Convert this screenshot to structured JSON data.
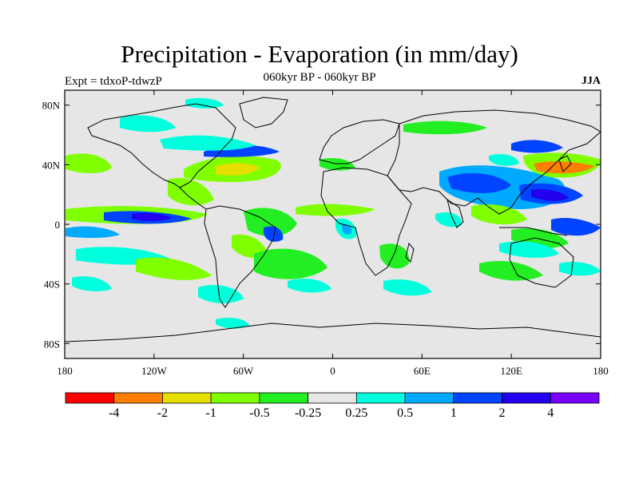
{
  "header": {
    "title": "Precipitation - Evaporation (in mm/day)",
    "subtitle": "060kyr BP - 060kyr BP",
    "left_label": "Expt = tdxoP-tdwzP",
    "right_label": "JJA"
  },
  "map": {
    "background_color": "#e6e6e6",
    "lat_ticks": [
      {
        "lat": 80,
        "label": "80N"
      },
      {
        "lat": 40,
        "label": "40N"
      },
      {
        "lat": 0,
        "label": "0"
      },
      {
        "lat": -40,
        "label": "40S"
      },
      {
        "lat": -80,
        "label": "80S"
      }
    ],
    "lon_ticks": [
      {
        "lon": -180,
        "label": "180"
      },
      {
        "lon": -120,
        "label": "120W"
      },
      {
        "lon": -60,
        "label": "60W"
      },
      {
        "lon": 0,
        "label": "0"
      },
      {
        "lon": 60,
        "label": "60E"
      },
      {
        "lon": 120,
        "label": "120E"
      },
      {
        "lon": 180,
        "label": "180"
      }
    ]
  },
  "colorbar": {
    "colors": [
      "#ff0000",
      "#ff7f00",
      "#e5e000",
      "#7fff00",
      "#22ee22",
      "#e6e6e6",
      "#00ffdd",
      "#00aaff",
      "#0044ff",
      "#2200ee",
      "#7700ff"
    ],
    "labels": [
      "-4",
      "-2",
      "-1",
      "-0.5",
      "-0.25",
      "0.25",
      "0.5",
      "1",
      "2",
      "4"
    ]
  }
}
